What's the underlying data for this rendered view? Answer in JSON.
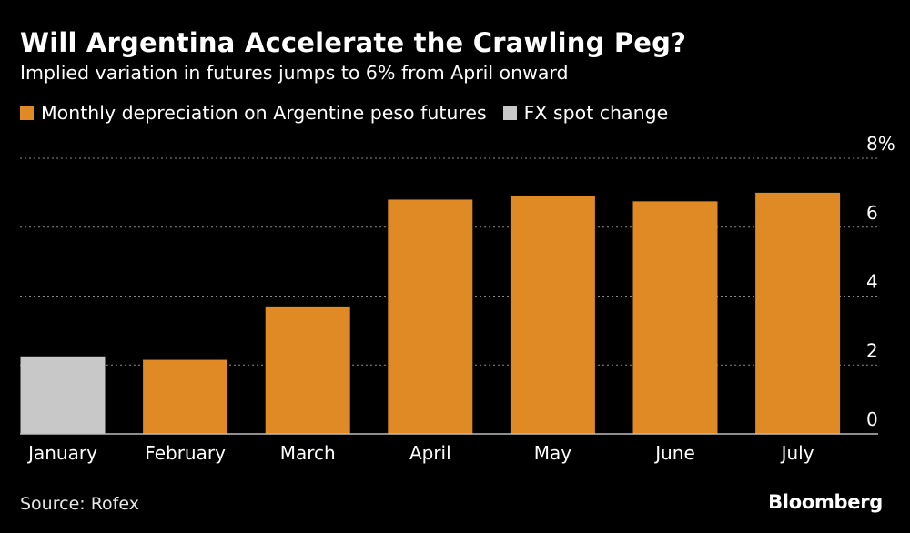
{
  "header": {
    "title": "Will Argentina Accelerate the Crawling Peg?",
    "subtitle": "Implied variation in futures jumps to 6% from April onward"
  },
  "legend": [
    {
      "label": "Monthly depreciation on Argentine peso futures",
      "color": "#e08a25"
    },
    {
      "label": "FX spot change",
      "color": "#c8c8c8"
    }
  ],
  "footer": {
    "source": "Source: Rofex",
    "brand": "Bloomberg"
  },
  "chart_data": {
    "type": "bar",
    "categories": [
      "January",
      "February",
      "March",
      "April",
      "May",
      "June",
      "July"
    ],
    "series": [
      {
        "name": "Monthly depreciation on Argentine peso futures",
        "values": [
          null,
          2.15,
          3.7,
          6.8,
          6.9,
          6.75,
          7.0
        ],
        "color": "#e08a25"
      },
      {
        "name": "FX spot change",
        "values": [
          2.25,
          null,
          null,
          null,
          null,
          null,
          null
        ],
        "color": "#c8c8c8"
      }
    ],
    "yticks": [
      "0",
      "2",
      "4",
      "6",
      "8%"
    ],
    "ylim": [
      0,
      8
    ],
    "grid": true,
    "legend_position": "top-left"
  }
}
